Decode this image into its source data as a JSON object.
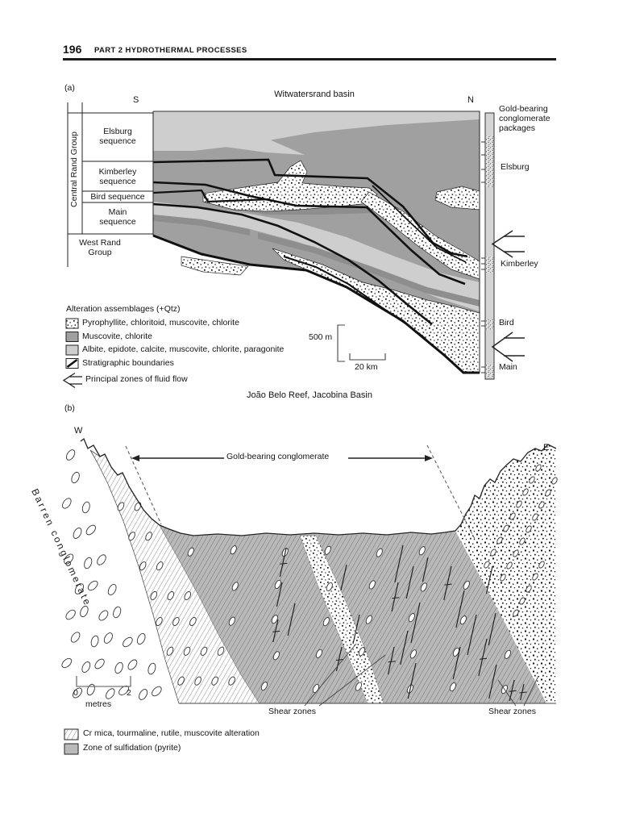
{
  "header": {
    "page_number": "196",
    "part_label": "PART 2  HYDROTHERMAL PROCESSES"
  },
  "panel_a": {
    "label": "(a)",
    "title": "Witwatersrand basin",
    "south": "S",
    "north": "N",
    "strat_column": {
      "group": "Central Rand Group",
      "rows": [
        "Elsburg sequence",
        "Kimberley sequence",
        "Bird sequence",
        "Main sequence"
      ],
      "below_group": "West Rand Group"
    },
    "packages_column": {
      "title": "Gold-bearing conglomerate packages",
      "labels": [
        "Elsburg",
        "Kimberley",
        "Bird",
        "Main"
      ]
    },
    "legend": {
      "title": "Alteration assemblages (+Qtz)",
      "items": [
        "Pyrophyllite, chloritoid, muscovite, chlorite",
        "Muscovite, chlorite",
        "Albite, epidote, calcite, muscovite, chlorite, paragonite",
        "Stratigraphic boundaries",
        "Principal zones of fluid flow"
      ]
    },
    "scale": {
      "vertical": "500 m",
      "horizontal": "20 km"
    },
    "colors": {
      "muscovite_chlorite": "#a0a0a0",
      "albite": "#cecece"
    }
  },
  "panel_b": {
    "label": "(b)",
    "title": "João Belo Reef, Jacobina Basin",
    "west": "W",
    "east": "E",
    "annotations": {
      "gold_bearing": "Gold-bearing conglomerate",
      "barren": "Barren conglomerate",
      "shear_1": "Shear zones",
      "shear_2": "Shear zones"
    },
    "scale": {
      "start": "0",
      "end": "2",
      "unit": "metres"
    },
    "legend": {
      "items": [
        "Cr mica, tourmaline, rutile, muscovite alteration",
        "Zone of sulfidation (pyrite)"
      ]
    },
    "colors": {
      "sulfidation": "#b9b9b9"
    }
  }
}
